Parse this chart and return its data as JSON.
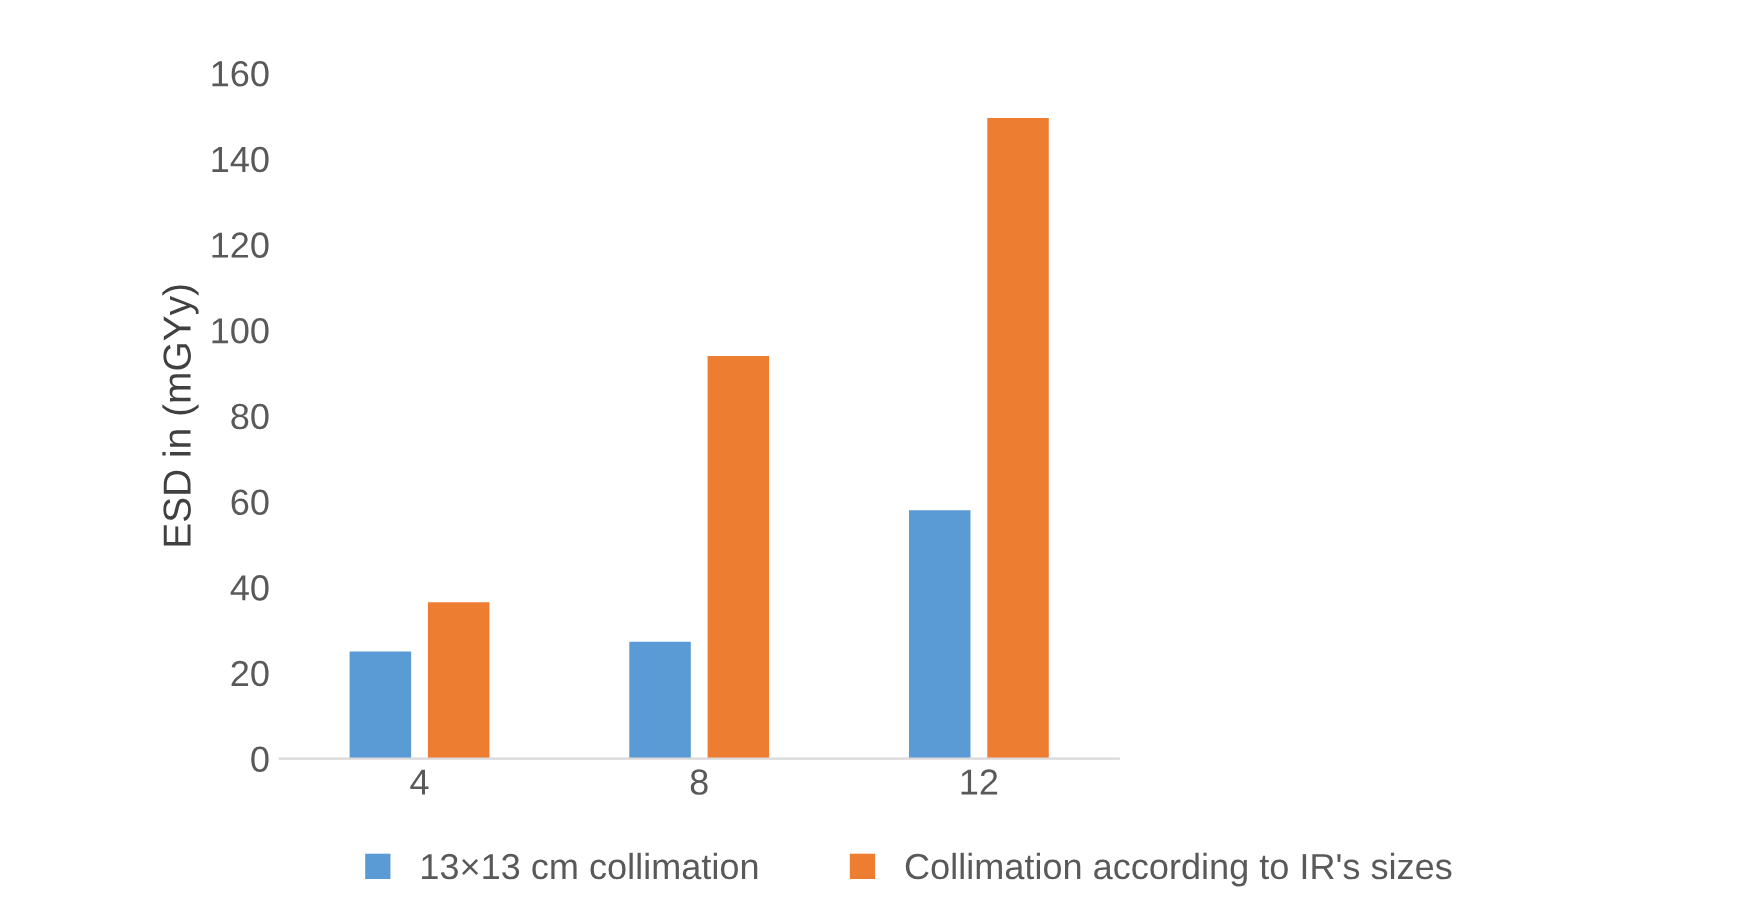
{
  "chart_data": {
    "type": "bar",
    "ylabel": "ESD in (mGYy)",
    "categories": [
      "4",
      "8",
      "12"
    ],
    "series": [
      {
        "name": "13×13 cm collimation",
        "color": "#5b9bd5",
        "values": [
          25,
          27.3,
          58
        ]
      },
      {
        "name": "Collimation according to IR's sizes",
        "color": "#ed7d31",
        "values": [
          36.5,
          94,
          149.5
        ]
      }
    ],
    "ylim": [
      0,
      160
    ],
    "yticks": [
      0,
      20,
      40,
      60,
      80,
      100,
      120,
      140,
      160
    ],
    "grid": false,
    "legend": "bottom"
  }
}
